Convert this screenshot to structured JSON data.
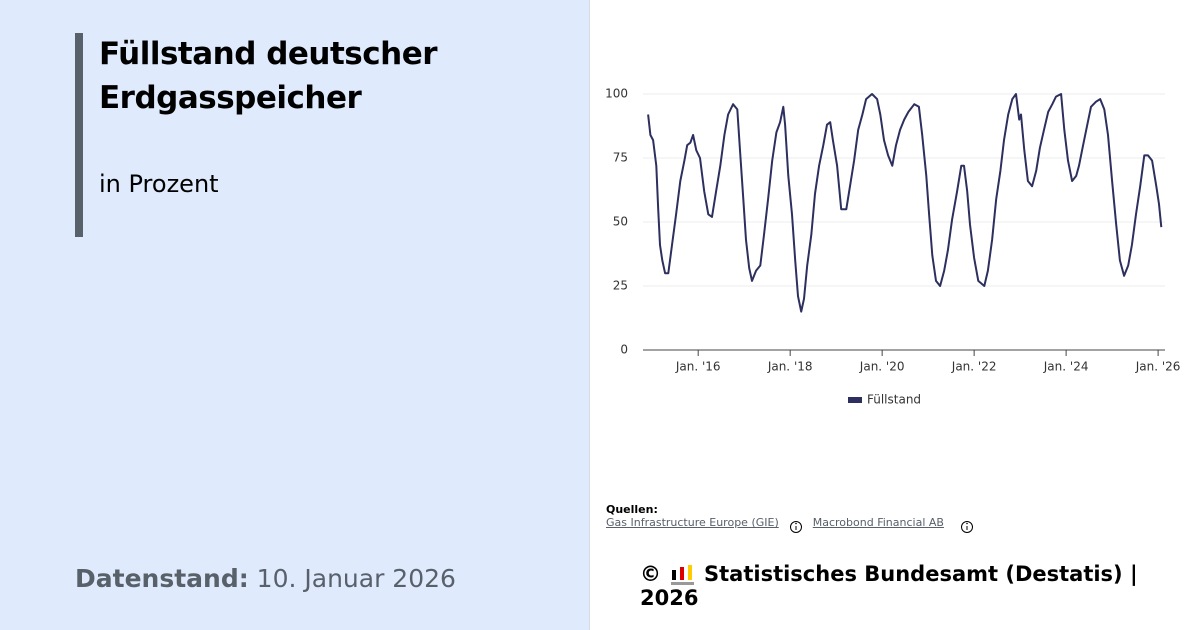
{
  "header": {
    "title": "Füllstand deutscher Erdgasspeicher",
    "subtitle": "in Prozent"
  },
  "footer": {
    "date_label": "Datenstand:",
    "date": "10. Januar 2026",
    "sources_label": "Quellen:",
    "sources": [
      "Gas Infrastructure Europe (GIE)",
      "Macrobond Financial AB"
    ],
    "copyright": "©",
    "publisher": "Statistisches Bundesamt (Destatis) | 2026"
  },
  "chart_data": {
    "type": "line",
    "x": [
      2014.91,
      2014.96,
      2015.02,
      2015.09,
      2015.13,
      2015.17,
      2015.22,
      2015.28,
      2015.35,
      2015.43,
      2015.52,
      2015.61,
      2015.7,
      2015.76,
      2015.83,
      2015.89,
      2015.96,
      2016.04,
      2016.13,
      2016.22,
      2016.3,
      2016.39,
      2016.48,
      2016.57,
      2016.65,
      2016.76,
      2016.85,
      2016.91,
      2016.98,
      2017.04,
      2017.11,
      2017.17,
      2017.26,
      2017.35,
      2017.43,
      2017.52,
      2017.61,
      2017.7,
      2017.78,
      2017.85,
      2017.89,
      2017.96,
      2018.04,
      2018.11,
      2018.17,
      2018.24,
      2018.3,
      2018.37,
      2018.46,
      2018.54,
      2018.63,
      2018.72,
      2018.8,
      2018.87,
      2018.93,
      2019.02,
      2019.11,
      2019.22,
      2019.3,
      2019.39,
      2019.48,
      2019.57,
      2019.65,
      2019.78,
      2019.89,
      2019.96,
      2020.04,
      2020.13,
      2020.22,
      2020.3,
      2020.39,
      2020.48,
      2020.57,
      2020.7,
      2020.8,
      2020.87,
      2020.96,
      2021.02,
      2021.09,
      2021.17,
      2021.26,
      2021.35,
      2021.43,
      2021.52,
      2021.63,
      2021.72,
      2021.78,
      2021.85,
      2021.91,
      2022.0,
      2022.09,
      2022.22,
      2022.3,
      2022.39,
      2022.48,
      2022.57,
      2022.65,
      2022.74,
      2022.83,
      2022.91,
      2022.98,
      2023.02,
      2023.09,
      2023.17,
      2023.26,
      2023.35,
      2023.43,
      2023.52,
      2023.61,
      2023.7,
      2023.78,
      2023.89,
      2023.96,
      2024.04,
      2024.13,
      2024.22,
      2024.28,
      2024.37,
      2024.46,
      2024.54,
      2024.65,
      2024.74,
      2024.83,
      2024.91,
      2025.0,
      2025.09,
      2025.17,
      2025.26,
      2025.35,
      2025.43,
      2025.52,
      2025.61,
      2025.7,
      2025.78,
      2025.87,
      2025.96,
      2026.02,
      2026.07
    ],
    "series": [
      {
        "name": "Füllstand",
        "color": "#2d2f5e",
        "values": [
          92,
          84,
          82,
          72,
          55,
          41,
          35,
          30,
          30,
          41,
          53,
          66,
          74,
          80,
          81,
          84,
          78,
          75,
          62,
          53,
          52,
          62,
          72,
          84,
          92,
          96,
          94,
          78,
          59,
          43,
          32,
          27,
          31,
          33,
          45,
          59,
          74,
          85,
          89,
          95,
          88,
          68,
          53,
          35,
          21,
          15,
          20,
          33,
          45,
          61,
          72,
          80,
          88,
          89,
          82,
          72,
          55,
          55,
          64,
          74,
          86,
          92,
          98,
          100,
          98,
          92,
          82,
          76,
          72,
          80,
          86,
          90,
          93,
          96,
          95,
          84,
          68,
          53,
          37,
          27,
          25,
          31,
          39,
          51,
          62,
          72,
          72,
          62,
          49,
          36,
          27,
          25,
          31,
          43,
          59,
          70,
          82,
          92,
          98,
          100,
          90,
          92,
          78,
          66,
          64,
          70,
          79,
          86,
          93,
          96,
          99,
          100,
          86,
          74,
          66,
          68,
          72,
          80,
          88,
          95,
          97,
          98,
          94,
          84,
          66,
          49,
          35,
          29,
          33,
          41,
          53,
          64,
          76,
          76,
          74,
          64,
          57,
          48
        ]
      }
    ],
    "xlim": [
      2014.8,
      2026.15
    ],
    "xticks": [
      {
        "value": 2016,
        "label": "Jan. '16"
      },
      {
        "value": 2018,
        "label": "Jan. '18"
      },
      {
        "value": 2020,
        "label": "Jan. '20"
      },
      {
        "value": 2022,
        "label": "Jan. '22"
      },
      {
        "value": 2024,
        "label": "Jan. '24"
      },
      {
        "value": 2026,
        "label": "Jan. '26"
      }
    ],
    "ylim": [
      0,
      100
    ],
    "yticks": [
      0,
      25,
      50,
      75,
      100
    ],
    "grid": true,
    "legend": "bottom"
  }
}
